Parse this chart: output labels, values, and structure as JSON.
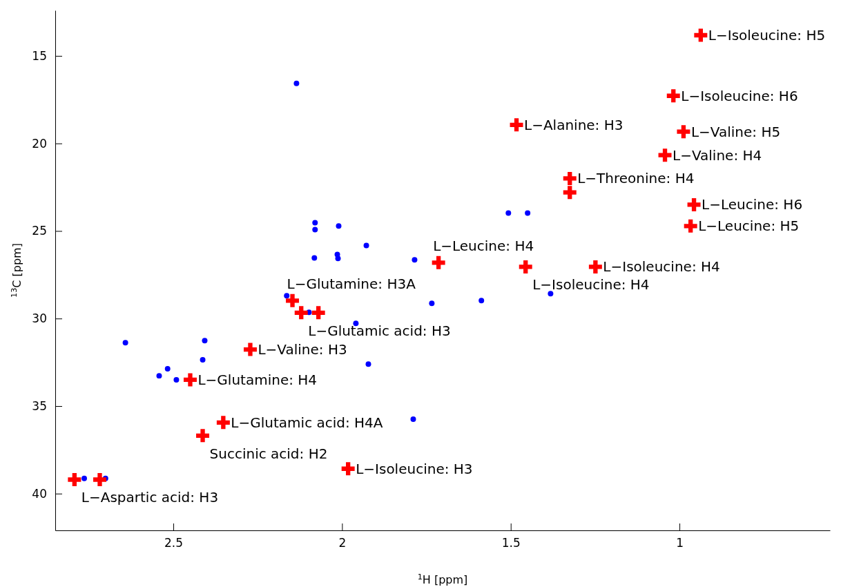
{
  "chart_data": {
    "type": "scatter",
    "xlabel": "$^{1}$H [ppm]",
    "ylabel": "$^{13}$C [ppm]",
    "xlim": [
      2.85,
      0.554
    ],
    "ylim": [
      42.1,
      12.4
    ],
    "xticks": [
      2.5,
      2,
      1.5,
      1
    ],
    "yticks": [
      15,
      20,
      25,
      30,
      35,
      40
    ],
    "series": [
      {
        "marker": "circle",
        "color": "#0000ff",
        "x": [
          2.135,
          2.08,
          2.08,
          2.01,
          2.014,
          2.012,
          2.082,
          1.928,
          1.785,
          1.734,
          1.587,
          2.164,
          2.098,
          1.959,
          1.922,
          2.642,
          2.407,
          2.413,
          2.517,
          2.542,
          2.491,
          1.789,
          2.764,
          2.701,
          1.507,
          1.45,
          1.382
        ],
        "values": [
          16.57,
          24.53,
          24.92,
          24.72,
          26.34,
          26.57,
          26.54,
          25.83,
          26.65,
          29.13,
          28.98,
          28.7,
          29.65,
          30.28,
          32.6,
          31.38,
          31.26,
          32.36,
          32.87,
          33.27,
          33.5,
          35.75,
          39.13,
          39.13,
          23.98,
          23.98,
          28.58
        ]
      },
      {
        "marker": "cross",
        "color": "#ff0000",
        "x": [
          0.937,
          1.018,
          1.483,
          0.988,
          1.043,
          1.325,
          1.325,
          0.957,
          0.967,
          1.714,
          1.456,
          1.249,
          2.147,
          2.121,
          2.07,
          2.272,
          2.45,
          2.352,
          2.413,
          1.982,
          2.793,
          2.718
        ],
        "values": [
          13.82,
          17.28,
          18.94,
          19.33,
          20.67,
          22.0,
          22.8,
          23.5,
          24.72,
          26.81,
          27.05,
          27.05,
          28.98,
          29.67,
          29.67,
          31.77,
          33.5,
          35.94,
          36.69,
          38.58,
          39.2,
          39.2
        ]
      }
    ],
    "annotations": [
      {
        "text": "L−Isoleucine: H5",
        "x": 0.937,
        "y": 13.82
      },
      {
        "text": "L−Isoleucine: H6",
        "x": 1.018,
        "y": 17.28
      },
      {
        "text": "L−Alanine: H3",
        "x": 1.483,
        "y": 18.94
      },
      {
        "text": "L−Valine: H5",
        "x": 0.988,
        "y": 19.33
      },
      {
        "text": "L−Valine: H4",
        "x": 1.043,
        "y": 20.67
      },
      {
        "text": "L−Threonine: H4",
        "x": 1.325,
        "y": 22.0
      },
      {
        "text": "L−Leucine: H6",
        "x": 0.957,
        "y": 23.5
      },
      {
        "text": "L−Leucine: H5",
        "x": 0.967,
        "y": 24.72
      },
      {
        "text": "L−Leucine: H4",
        "x": 1.714,
        "y": 26.81
      },
      {
        "text": "L−Isoleucine: H4",
        "x": 1.249,
        "y": 27.05
      },
      {
        "text": "L−Isoleucine: H4",
        "x": 1.456,
        "y": 27.05
      },
      {
        "text": "L−Glutamine: H3A",
        "x": 2.147,
        "y": 28.98
      },
      {
        "text": "L−Glutamic acid: H3",
        "x": 2.121,
        "y": 29.67
      },
      {
        "text": "L−Valine: H3",
        "x": 2.272,
        "y": 31.77
      },
      {
        "text": "L−Glutamine: H4",
        "x": 2.45,
        "y": 33.5
      },
      {
        "text": "L−Glutamic acid: H4A",
        "x": 2.352,
        "y": 35.94
      },
      {
        "text": "Succinic acid: H2",
        "x": 2.413,
        "y": 36.69
      },
      {
        "text": "L−Isoleucine: H3",
        "x": 1.982,
        "y": 38.58
      },
      {
        "text": "L−Aspartic acid: H3",
        "x": 2.793,
        "y": 39.2
      }
    ]
  }
}
